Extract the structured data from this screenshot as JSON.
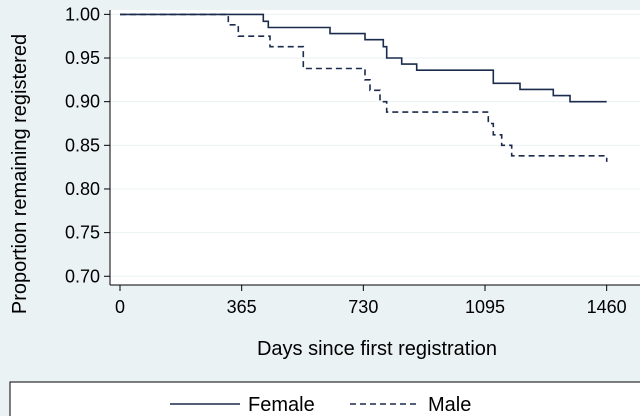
{
  "chart_data": {
    "type": "line",
    "title": "",
    "xlabel": "Days since first registration",
    "ylabel": "Proportion remaining registered",
    "xlim": [
      -30,
      1560
    ],
    "ylim": [
      0.69,
      1.005
    ],
    "xticks": [
      0,
      365,
      730,
      1095,
      1460
    ],
    "xtick_labels": [
      "0",
      "365",
      "730",
      "1095",
      "1460"
    ],
    "yticks": [
      0.7,
      0.75,
      0.8,
      0.85,
      0.9,
      0.95,
      1.0
    ],
    "ytick_labels": [
      "0.70",
      "0.75",
      "0.80",
      "0.85",
      "0.90",
      "0.95",
      "1.00"
    ],
    "grid": "horizontal",
    "step": true,
    "legend": "bottom",
    "series": [
      {
        "name": "Female",
        "color": "#1a2b4c",
        "dash": "solid",
        "x": [
          0,
          430,
          445,
          630,
          735,
          790,
          800,
          845,
          890,
          1120,
          1200,
          1300,
          1350,
          1460
        ],
        "y": [
          1.0,
          0.992,
          0.985,
          0.978,
          0.971,
          0.963,
          0.95,
          0.943,
          0.936,
          0.921,
          0.914,
          0.907,
          0.9,
          0.9
        ]
      },
      {
        "name": "Male",
        "color": "#1a2b4c",
        "dash": "dashed",
        "x": [
          0,
          325,
          355,
          450,
          550,
          735,
          750,
          780,
          800,
          1105,
          1120,
          1145,
          1175,
          1460
        ],
        "y": [
          1.0,
          0.988,
          0.975,
          0.963,
          0.938,
          0.925,
          0.913,
          0.9,
          0.888,
          0.875,
          0.862,
          0.85,
          0.838,
          0.831
        ]
      }
    ]
  }
}
